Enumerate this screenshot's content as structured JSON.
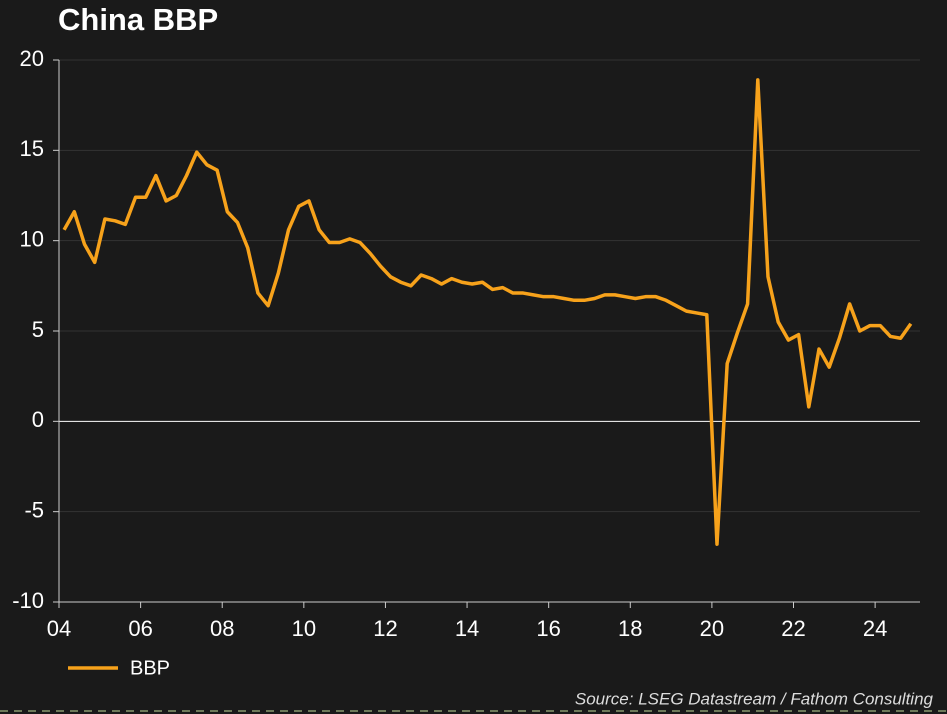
{
  "chart_data": {
    "type": "line",
    "title": "China BBP",
    "x": [
      2004.125,
      2004.375,
      2004.625,
      2004.875,
      2005.125,
      2005.375,
      2005.625,
      2005.875,
      2006.125,
      2006.375,
      2006.625,
      2006.875,
      2007.125,
      2007.375,
      2007.625,
      2007.875,
      2008.125,
      2008.375,
      2008.625,
      2008.875,
      2009.125,
      2009.375,
      2009.625,
      2009.875,
      2010.125,
      2010.375,
      2010.625,
      2010.875,
      2011.125,
      2011.375,
      2011.625,
      2011.875,
      2012.125,
      2012.375,
      2012.625,
      2012.875,
      2013.125,
      2013.375,
      2013.625,
      2013.875,
      2014.125,
      2014.375,
      2014.625,
      2014.875,
      2015.125,
      2015.375,
      2015.625,
      2015.875,
      2016.125,
      2016.375,
      2016.625,
      2016.875,
      2017.125,
      2017.375,
      2017.625,
      2017.875,
      2018.125,
      2018.375,
      2018.625,
      2018.875,
      2019.125,
      2019.375,
      2019.625,
      2019.875,
      2020.125,
      2020.375,
      2020.625,
      2020.875,
      2021.125,
      2021.375,
      2021.625,
      2021.875,
      2022.125,
      2022.375,
      2022.625,
      2022.875,
      2023.125,
      2023.375,
      2023.625,
      2023.875,
      2024.125,
      2024.375,
      2024.625,
      2024.875
    ],
    "series": [
      {
        "name": "BBP",
        "color": "#f7a21b",
        "values": [
          10.6,
          11.6,
          9.8,
          8.8,
          11.2,
          11.1,
          10.9,
          12.4,
          12.4,
          13.6,
          12.2,
          12.5,
          13.6,
          14.9,
          14.2,
          13.9,
          11.6,
          11.0,
          9.6,
          7.1,
          6.4,
          8.2,
          10.6,
          11.9,
          12.2,
          10.6,
          9.9,
          9.9,
          10.1,
          9.9,
          9.3,
          8.6,
          8.0,
          7.7,
          7.5,
          8.1,
          7.9,
          7.6,
          7.9,
          7.7,
          7.6,
          7.7,
          7.3,
          7.4,
          7.1,
          7.1,
          7.0,
          6.9,
          6.9,
          6.8,
          6.7,
          6.7,
          6.8,
          7.0,
          7.0,
          6.9,
          6.8,
          6.9,
          6.9,
          6.7,
          6.4,
          6.1,
          6.0,
          5.9,
          -6.8,
          3.2,
          4.9,
          6.5,
          18.9,
          8.0,
          5.5,
          4.5,
          4.8,
          0.8,
          4.0,
          3.0,
          4.6,
          6.5,
          5.0,
          5.3,
          5.3,
          4.7,
          4.6,
          5.4
        ]
      }
    ],
    "xlim": [
      2004,
      2025.1
    ],
    "xticks": [
      {
        "value": 2004,
        "label": "04"
      },
      {
        "value": 2006,
        "label": "06"
      },
      {
        "value": 2008,
        "label": "08"
      },
      {
        "value": 2010,
        "label": "10"
      },
      {
        "value": 2012,
        "label": "12"
      },
      {
        "value": 2014,
        "label": "14"
      },
      {
        "value": 2016,
        "label": "16"
      },
      {
        "value": 2018,
        "label": "18"
      },
      {
        "value": 2020,
        "label": "20"
      },
      {
        "value": 2022,
        "label": "22"
      },
      {
        "value": 2024,
        "label": "24"
      }
    ],
    "ylim": [
      -10,
      20
    ],
    "yticks": [
      -10,
      -5,
      0,
      5,
      10,
      15,
      20
    ],
    "grid": true,
    "source": "Source: LSEG Datastream / Fathom Consulting"
  }
}
